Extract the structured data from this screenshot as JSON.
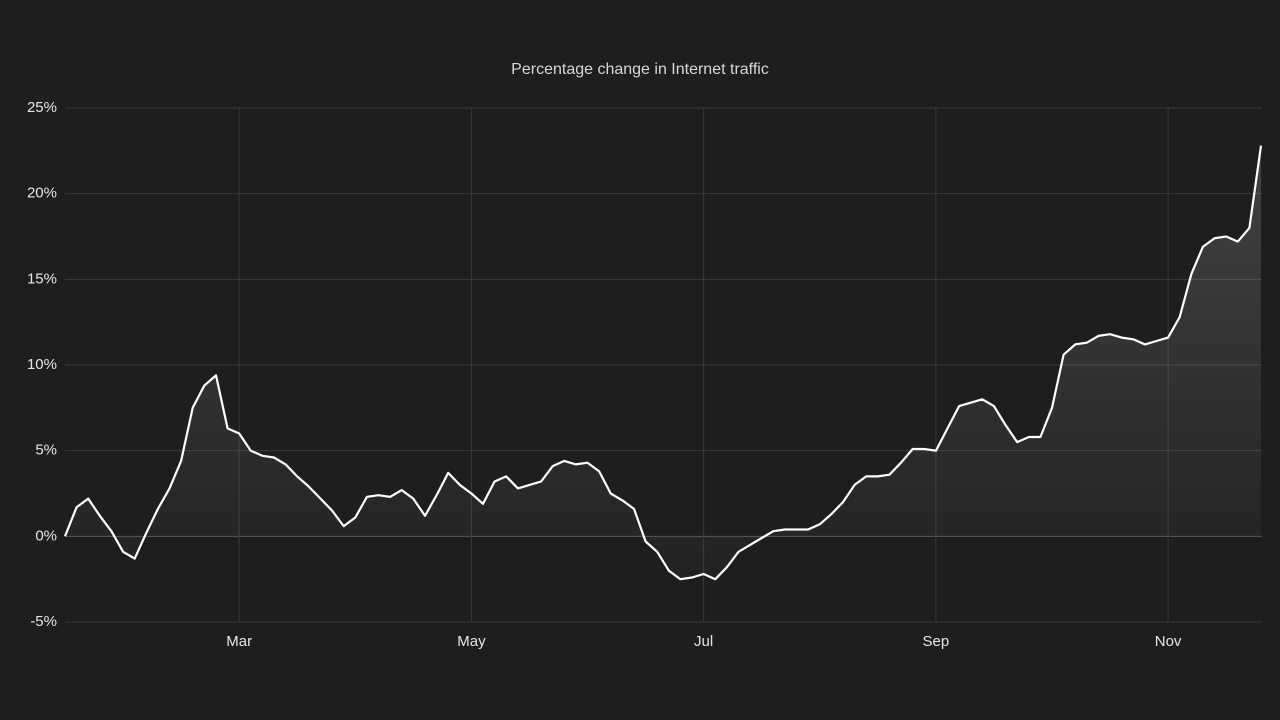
{
  "chart_data": {
    "type": "line",
    "title": "Percentage change in Internet traffic",
    "categories": [
      null,
      null,
      null,
      null,
      null,
      null,
      null,
      null,
      null,
      null,
      null,
      null,
      null,
      null,
      null,
      "Mar",
      null,
      null,
      null,
      null,
      null,
      null,
      null,
      null,
      null,
      null,
      null,
      null,
      null,
      null,
      null,
      null,
      null,
      null,
      null,
      "May",
      null,
      null,
      null,
      null,
      null,
      null,
      null,
      null,
      null,
      null,
      null,
      null,
      null,
      null,
      null,
      null,
      null,
      null,
      null,
      "Jul",
      null,
      null,
      null,
      null,
      null,
      null,
      null,
      null,
      null,
      null,
      null,
      null,
      null,
      null,
      null,
      null,
      null,
      null,
      null,
      "Sep",
      null,
      null,
      null,
      null,
      null,
      null,
      null,
      null,
      null,
      null,
      null,
      null,
      null,
      null,
      null,
      null,
      null,
      null,
      null,
      "Nov",
      null,
      null,
      null,
      null,
      null,
      null,
      null,
      null
    ],
    "series": [
      {
        "name": "Internet traffic",
        "color": "#ffffff",
        "values": [
          0,
          1.7,
          2.2,
          1.2,
          0.3,
          -0.9,
          -1.3,
          0.2,
          1.6,
          2.8,
          4.4,
          7.5,
          8.8,
          9.4,
          6.3,
          6.0,
          5.0,
          4.7,
          4.6,
          4.2,
          3.5,
          2.9,
          2.2,
          1.5,
          0.6,
          1.1,
          2.3,
          2.4,
          2.3,
          2.7,
          2.2,
          1.2,
          2.4,
          3.7,
          3.0,
          2.5,
          1.9,
          3.2,
          3.5,
          2.8,
          3.0,
          3.2,
          4.1,
          4.4,
          4.2,
          4.3,
          3.8,
          2.5,
          2.1,
          1.6,
          -0.3,
          -0.9,
          -2.0,
          -2.5,
          -2.4,
          -2.2,
          -2.5,
          -1.8,
          -0.9,
          -0.5,
          -0.1,
          0.3,
          0.4,
          0.4,
          0.4,
          0.7,
          1.3,
          2.0,
          3.0,
          3.5,
          3.5,
          3.6,
          4.3,
          5.1,
          5.1,
          5.0,
          6.3,
          7.6,
          7.8,
          8.0,
          7.6,
          6.5,
          5.5,
          5.8,
          5.8,
          7.5,
          10.6,
          11.2,
          11.3,
          11.7,
          11.8,
          11.6,
          11.5,
          11.2,
          11.4,
          11.6,
          12.8,
          15.3,
          16.9,
          17.4,
          17.5,
          17.2,
          18.0,
          22.8
        ]
      }
    ],
    "ylim": [
      -5,
      25
    ],
    "yticks": [
      {
        "value": -5,
        "label": "-5%"
      },
      {
        "value": 0,
        "label": "0%"
      },
      {
        "value": 5,
        "label": "5%"
      },
      {
        "value": 10,
        "label": "10%"
      },
      {
        "value": 15,
        "label": "15%"
      },
      {
        "value": 20,
        "label": "20%"
      },
      {
        "value": 25,
        "label": "25%"
      }
    ],
    "grid": true
  }
}
